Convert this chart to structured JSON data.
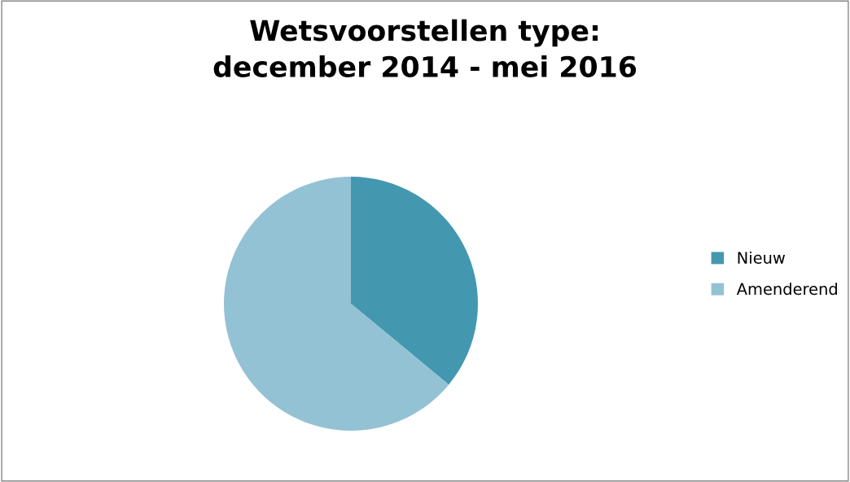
{
  "chart_data": {
    "type": "pie",
    "title": "Wetsvoorstellen type:\ndecember 2014 - mei 2016",
    "categories": [
      "Nieuw",
      "Amenderend"
    ],
    "values": [
      36,
      64
    ],
    "colors": [
      "#4398b0",
      "#93c2d4"
    ],
    "legend": "right"
  }
}
